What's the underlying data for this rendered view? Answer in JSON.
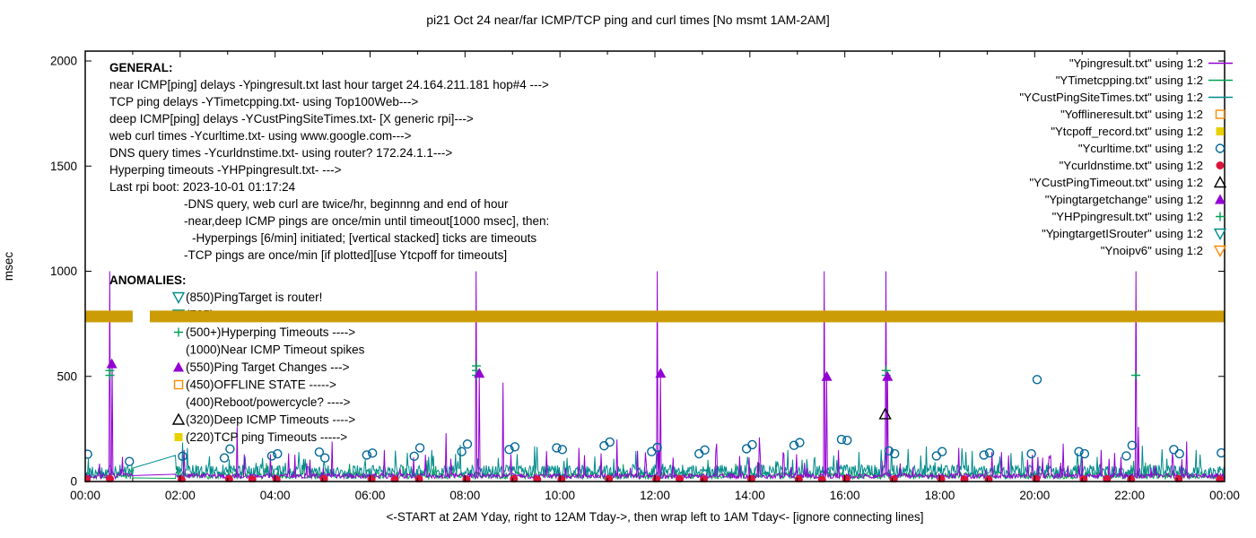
{
  "chart_data": {
    "type": "line+scatter",
    "title": "pi21 Oct 24  near/far ICMP/TCP ping and curl times [No msmt 1AM-2AM]",
    "y_axis": {
      "label": "msec",
      "ticks": [
        0,
        500,
        1000,
        1500,
        2000
      ],
      "lim": [
        0,
        2000
      ]
    },
    "x_axis": {
      "label": "<-START at 2AM Yday, right to 12AM Tday->, then wrap left to 1AM Tday<- [ignore connecting lines]",
      "tick_labels": [
        "00:00",
        "02:00",
        "04:00",
        "06:00",
        "08:00",
        "10:00",
        "12:00",
        "14:00",
        "16:00",
        "18:00",
        "20:00",
        "22:00",
        "00:00"
      ],
      "lim_hours": [
        0,
        24
      ],
      "no_measurement_gap_hours": [
        1.0,
        1.9
      ]
    },
    "legend": [
      {
        "label": "\"Ypingresult.txt\" using 1:2",
        "sample": "line",
        "color": "#9400d3"
      },
      {
        "label": "\"YTimetcpping.txt\" using 1:2",
        "sample": "line",
        "color": "#00a352"
      },
      {
        "label": "\"YCustPingSiteTimes.txt\" using 1:2",
        "sample": "line",
        "color": "#008b8b"
      },
      {
        "label": "\"Yofflineresult.txt\" using 1:2",
        "sample": "square-open",
        "color": "#ff8c00"
      },
      {
        "label": "\"Ytcpoff_record.txt\" using 1:2",
        "sample": "square-filled",
        "color": "#e8d100"
      },
      {
        "label": "\"Ycurltime.txt\" using 1:2",
        "sample": "circle-open",
        "color": "#006699"
      },
      {
        "label": "\"Ycurldnstime.txt\" using 1:2",
        "sample": "circle-filled",
        "color": "#dc143c"
      },
      {
        "label": "\"YCustPingTimeout.txt\" using 1:2",
        "sample": "triangle-open",
        "color": "#000000"
      },
      {
        "label": "\"Ypingtargetchange\" using 1:2",
        "sample": "triangle-filled",
        "color": "#9400d3"
      },
      {
        "label": "\"YHPpingresult.txt\" using 1:2",
        "sample": "plus",
        "color": "#00a352"
      },
      {
        "label": "\"YpingtargetISrouter\" using 1:2",
        "sample": "down-triangle-open",
        "color": "#008b8b"
      },
      {
        "label": "\"Ynoipv6\" using 1:2",
        "sample": "down-triangle-open",
        "color": "#ff8c00"
      }
    ],
    "general_block": {
      "heading": "GENERAL:",
      "lines": [
        {
          "indent": 0,
          "text": "near ICMP[ping] delays -Ypingresult.txt last hour target 24.164.211.181 hop#4 --->"
        },
        {
          "indent": 0,
          "text": "TCP ping delays -YTimetcpping.txt- using Top100Web--->"
        },
        {
          "indent": 0,
          "text": "deep ICMP[ping] delays -YCustPingSiteTimes.txt- [X generic rpi]--->"
        },
        {
          "indent": 0,
          "text": "web curl times -Ycurltime.txt- using www.google.com--->"
        },
        {
          "indent": 0,
          "text": "DNS query times -Ycurldnstime.txt- using router? 172.24.1.1--->"
        },
        {
          "indent": 0,
          "text": "Hyperping timeouts -YHPpingresult.txt- --->"
        },
        {
          "indent": 0,
          "text": "Last rpi boot: 2023-10-01 01:17:24"
        },
        {
          "indent": 1,
          "text": "-DNS query, web curl are twice/hr, beginnng and end of hour"
        },
        {
          "indent": 1,
          "text": "-near,deep ICMP pings are once/min until timeout[1000 msec], then:"
        },
        {
          "indent": 2,
          "text": "-Hyperpings [6/min] initiated; [vertical stacked] ticks are timeouts"
        },
        {
          "indent": 1,
          "text": "-TCP pings are once/min [if plotted][use Ytcpoff for timeouts]"
        }
      ]
    },
    "anomalies_block": {
      "heading": "ANOMALIES:",
      "items": [
        {
          "marker": "down-triangle-open",
          "marker_color": "#008b8b",
          "label": "(850)PingTarget is router!"
        },
        {
          "marker": "down-triangle-open",
          "marker_color": "#008b8b",
          "label": "(785)"
        },
        {
          "marker": "plus",
          "marker_color": "#00a352",
          "label": "(500+)Hyperping Timeouts ---->"
        },
        {
          "marker": null,
          "marker_color": null,
          "label": "(1000)Near ICMP Timeout spikes"
        },
        {
          "marker": "triangle-filled",
          "marker_color": "#9400d3",
          "label": "(550)Ping Target Changes --->"
        },
        {
          "marker": "square-open",
          "marker_color": "#ff8c00",
          "label": "(450)OFFLINE STATE ----->"
        },
        {
          "marker": null,
          "marker_color": null,
          "label": "(400)Reboot/powercycle? ---->"
        },
        {
          "marker": "triangle-open",
          "marker_color": "#000000",
          "label": "(320)Deep ICMP Timeouts ---->"
        },
        {
          "marker": "square-filled",
          "marker_color": "#e8d100",
          "label": "(220)TCP ping Timeouts ----->"
        }
      ]
    },
    "series": [
      {
        "name": "YTimetcpping.txt",
        "style": "line",
        "color": "#00a352",
        "seed": 13,
        "baseline_msec": [
          12,
          45
        ],
        "spike_prob": 0.03,
        "spike_amp": 70,
        "spikes": []
      },
      {
        "name": "YCustPingSiteTimes.txt",
        "style": "line",
        "color": "#008b8b",
        "seed": 29,
        "baseline_msec": [
          18,
          80
        ],
        "spike_prob": 0.06,
        "spike_amp": 100,
        "spikes": [
          [
            2.05,
            185
          ],
          [
            2.15,
            160
          ],
          [
            4.5,
            140
          ],
          [
            7.3,
            150
          ],
          [
            9.1,
            130
          ],
          [
            11.6,
            145
          ],
          [
            14.8,
            150
          ],
          [
            16.3,
            140
          ],
          [
            19.5,
            135
          ],
          [
            23.4,
            150
          ]
        ]
      },
      {
        "name": "Ypingresult.txt",
        "style": "line",
        "color": "#9400d3",
        "seed": 7,
        "baseline_msec": [
          14,
          38
        ],
        "spike_prob": 0.05,
        "spike_amp": 120,
        "spikes": [
          [
            0.51,
            1000
          ],
          [
            0.56,
            560
          ],
          [
            2.08,
            150
          ],
          [
            3.2,
            260
          ],
          [
            3.9,
            130
          ],
          [
            5.2,
            190
          ],
          [
            6.3,
            150
          ],
          [
            7.6,
            230
          ],
          [
            8.24,
            1000
          ],
          [
            8.3,
            510
          ],
          [
            8.8,
            470
          ],
          [
            10.4,
            160
          ],
          [
            11.2,
            200
          ],
          [
            12.05,
            1000
          ],
          [
            12.12,
            510
          ],
          [
            13.3,
            180
          ],
          [
            14.2,
            210
          ],
          [
            15.57,
            1000
          ],
          [
            15.62,
            500
          ],
          [
            16.87,
            1000
          ],
          [
            16.9,
            500
          ],
          [
            18.4,
            160
          ],
          [
            19.3,
            140
          ],
          [
            20.6,
            180
          ],
          [
            21.4,
            150
          ],
          [
            22.13,
            1000
          ],
          [
            22.18,
            260
          ],
          [
            23.2,
            190
          ]
        ]
      },
      {
        "name": "Ycurltime.txt",
        "style": "circle-open",
        "color": "#006699",
        "points": [
          [
            0.05,
            130
          ],
          [
            0.93,
            95
          ],
          [
            2.05,
            120
          ],
          [
            2.93,
            112
          ],
          [
            3.05,
            155
          ],
          [
            3.93,
            122
          ],
          [
            4.05,
            132
          ],
          [
            4.93,
            140
          ],
          [
            5.05,
            112
          ],
          [
            5.93,
            126
          ],
          [
            6.05,
            135
          ],
          [
            6.93,
            120
          ],
          [
            7.05,
            160
          ],
          [
            7.93,
            142
          ],
          [
            8.05,
            178
          ],
          [
            8.93,
            152
          ],
          [
            9.05,
            165
          ],
          [
            9.93,
            160
          ],
          [
            10.05,
            152
          ],
          [
            10.93,
            170
          ],
          [
            11.05,
            188
          ],
          [
            11.93,
            142
          ],
          [
            12.05,
            162
          ],
          [
            12.93,
            132
          ],
          [
            13.05,
            150
          ],
          [
            13.93,
            156
          ],
          [
            14.05,
            175
          ],
          [
            14.93,
            172
          ],
          [
            15.05,
            185
          ],
          [
            15.93,
            200
          ],
          [
            16.05,
            196
          ],
          [
            16.93,
            146
          ],
          [
            17.05,
            132
          ],
          [
            17.93,
            122
          ],
          [
            18.05,
            142
          ],
          [
            18.93,
            126
          ],
          [
            19.05,
            136
          ],
          [
            19.93,
            132
          ],
          [
            20.05,
            485
          ],
          [
            20.93,
            142
          ],
          [
            21.05,
            132
          ],
          [
            21.93,
            122
          ],
          [
            22.05,
            172
          ],
          [
            22.93,
            152
          ],
          [
            23.05,
            132
          ],
          [
            23.93,
            136
          ]
        ]
      },
      {
        "name": "Ycurldnstime.txt",
        "style": "circle-filled",
        "color": "#dc143c",
        "points": [
          [
            0.03,
            10
          ],
          [
            0.52,
            12
          ],
          [
            2.03,
            9
          ],
          [
            3.03,
            11
          ],
          [
            3.52,
            10
          ],
          [
            4.03,
            9
          ],
          [
            5.03,
            12
          ],
          [
            6.03,
            10
          ],
          [
            6.52,
            9
          ],
          [
            7.03,
            11
          ],
          [
            8.03,
            10
          ],
          [
            9.03,
            12
          ],
          [
            9.52,
            10
          ],
          [
            10.03,
            9
          ],
          [
            11.03,
            11
          ],
          [
            12.03,
            10
          ],
          [
            12.52,
            12
          ],
          [
            13.03,
            9
          ],
          [
            14.03,
            11
          ],
          [
            15.03,
            10
          ],
          [
            15.52,
            9
          ],
          [
            16.03,
            12
          ],
          [
            17.03,
            10
          ],
          [
            18.03,
            11
          ],
          [
            18.52,
            10
          ],
          [
            19.03,
            9
          ],
          [
            20.03,
            12
          ],
          [
            21.03,
            10
          ],
          [
            21.52,
            11
          ],
          [
            22.03,
            9
          ],
          [
            23.03,
            11
          ],
          [
            23.9,
            10
          ]
        ]
      },
      {
        "name": "YHPpingresult.txt",
        "style": "plus",
        "color": "#00a352",
        "points": [
          [
            0.52,
            505
          ],
          [
            0.52,
            528
          ],
          [
            8.24,
            505
          ],
          [
            8.24,
            528
          ],
          [
            8.24,
            550
          ],
          [
            16.87,
            505
          ],
          [
            16.87,
            528
          ],
          [
            22.13,
            505
          ]
        ]
      },
      {
        "name": "YCustPingTimeout.txt",
        "style": "triangle-open",
        "color": "#000000",
        "points": [
          [
            16.85,
            320
          ]
        ]
      },
      {
        "name": "Ypingtargetchange",
        "style": "triangle-filled",
        "color": "#9400d3",
        "points": [
          [
            0.56,
            560
          ],
          [
            8.3,
            515
          ],
          [
            12.12,
            515
          ],
          [
            15.62,
            500
          ],
          [
            16.9,
            500
          ]
        ]
      },
      {
        "name": "Yofflineresult.txt",
        "style": "square-open",
        "color": "#ff8c00",
        "points": []
      },
      {
        "name": "Ytcpoff_record.txt",
        "style": "square-filled",
        "color": "#e8d100",
        "points": []
      },
      {
        "name": "YpingtargetISrouter",
        "style": "down-triangle-open",
        "color": "#008b8b",
        "points": []
      },
      {
        "name": "Ynoipv6",
        "style": "band",
        "color": "#cc9c06",
        "value_msec": 785,
        "segments_hours": [
          [
            0,
            1.0
          ],
          [
            1.36,
            24
          ]
        ]
      }
    ]
  }
}
